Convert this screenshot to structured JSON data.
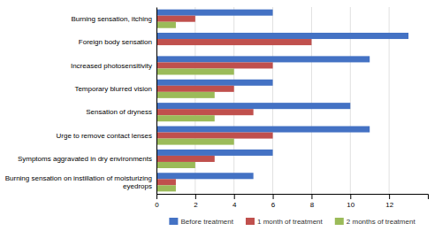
{
  "chart_data": {
    "type": "bar",
    "orientation": "horizontal",
    "categories": [
      "Burning sensation, itching",
      "Foreign body sensation",
      "Increased photosensitivity",
      "Temporary blurred vision",
      "Sensation of dryness",
      "Urge to remove contact lenses",
      "Symptoms aggravated in dry environments",
      "Burning sensation on instillation of moisturizing\neyedrops"
    ],
    "series": [
      {
        "name": "Before treatment",
        "color": "#4472C4",
        "values": [
          6,
          13,
          11,
          6,
          10,
          11,
          6,
          5
        ]
      },
      {
        "name": "1 month of treatment",
        "color": "#C0504D",
        "values": [
          2,
          8,
          6,
          4,
          5,
          6,
          3,
          1
        ]
      },
      {
        "name": "2 months of treatment",
        "color": "#9BBB59",
        "values": [
          1,
          0,
          4,
          3,
          3,
          4,
          2,
          1
        ]
      }
    ],
    "xlim": [
      0,
      14
    ],
    "xticks": [
      0,
      2,
      4,
      6,
      8,
      10,
      12
    ],
    "grid": true,
    "legend": "bottom"
  }
}
